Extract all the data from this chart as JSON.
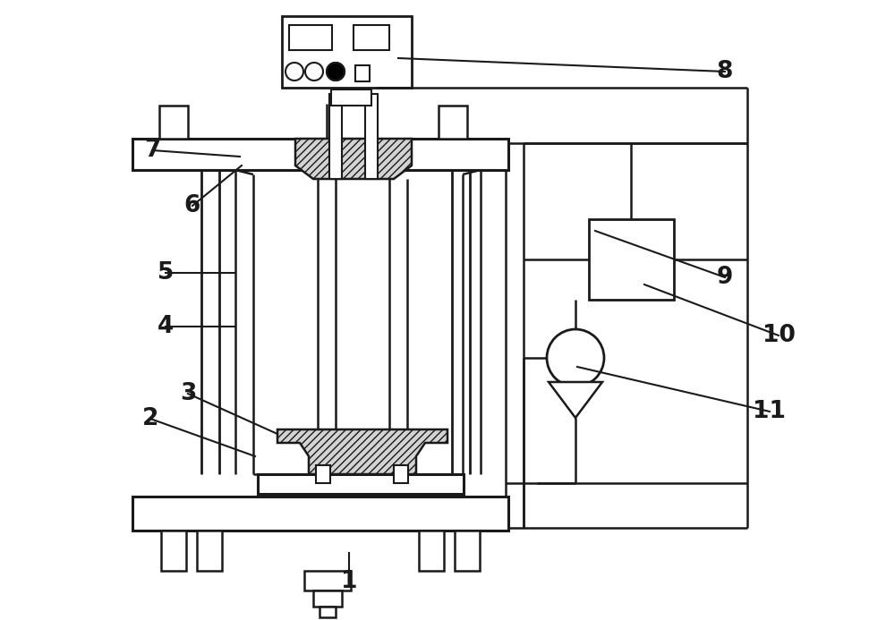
{
  "bg_color": "#ffffff",
  "lc": "#1a1a1a",
  "lw": 1.8,
  "fig_w": 9.9,
  "fig_h": 6.93,
  "annotations": [
    [
      "1",
      390,
      650,
      390,
      618
    ],
    [
      "2",
      168,
      468,
      285,
      510
    ],
    [
      "3",
      210,
      440,
      310,
      485
    ],
    [
      "4",
      185,
      365,
      263,
      365
    ],
    [
      "5",
      185,
      305,
      263,
      305
    ],
    [
      "6",
      215,
      230,
      270,
      185
    ],
    [
      "7",
      170,
      168,
      268,
      175
    ],
    [
      "8",
      810,
      80,
      445,
      65
    ],
    [
      "9",
      810,
      310,
      665,
      258
    ],
    [
      "10",
      870,
      375,
      720,
      318
    ],
    [
      "11",
      860,
      460,
      645,
      410
    ]
  ]
}
